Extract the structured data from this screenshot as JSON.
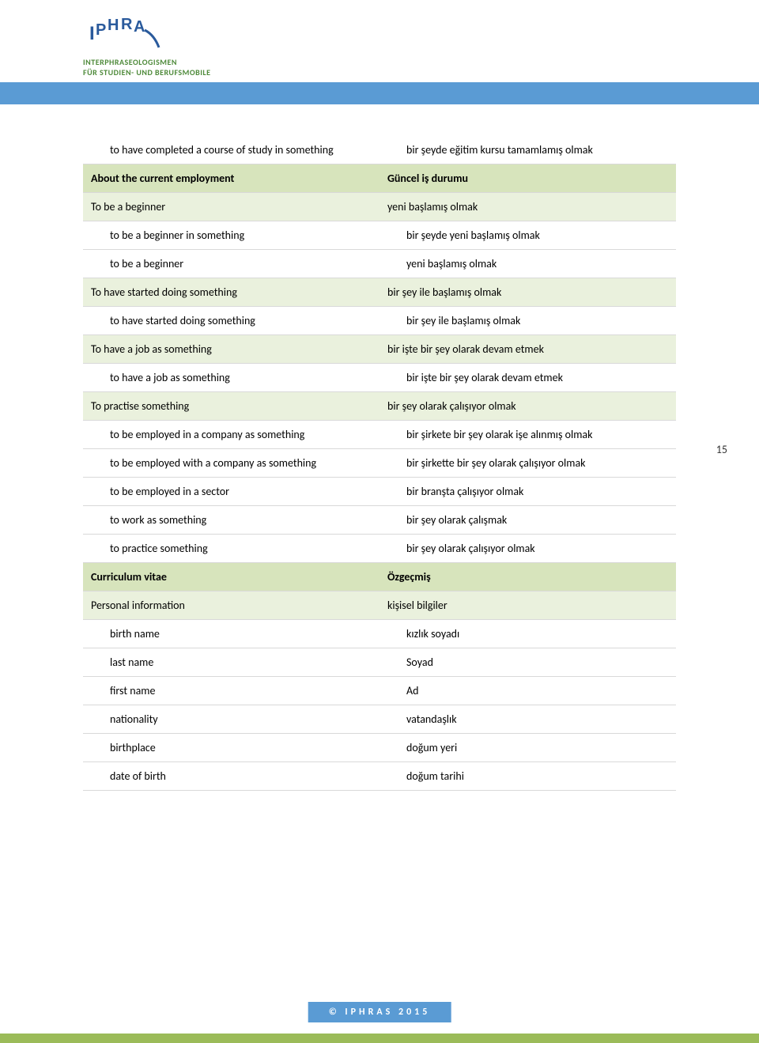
{
  "header": {
    "logo_line1": "INTERPHRASEOLOGISMEN",
    "logo_line2": "FÜR STUDIEN- UND BERUFSMOBILE",
    "colors": {
      "blue_bar": "#5a9bd4",
      "green_strip": "#9bbb59",
      "logo_green": "#4e8a3a",
      "hdr_bg": "#d7e4bc",
      "sub_bg": "#eaf1dd",
      "border": "#d9d9d9"
    }
  },
  "page_number": "15",
  "footer": "© IPHRAS 2015",
  "rows": [
    {
      "type": "plain",
      "l": "to have completed a course of study in something",
      "r": "bir şeyde eğitim kursu tamamlamış olmak",
      "li": 1,
      "ri": 1
    },
    {
      "type": "hdr",
      "l": "About the current employment",
      "r": "Güncel iş durumu",
      "li": 0,
      "ri": 0
    },
    {
      "type": "sub",
      "l": "To be a beginner",
      "r": "yeni başlamış olmak",
      "li": 0,
      "ri": 0
    },
    {
      "type": "plain",
      "l": "to be a beginner in something",
      "r": "bir şeyde yeni başlamış olmak",
      "li": 1,
      "ri": 1
    },
    {
      "type": "plain",
      "l": "to be a beginner",
      "r": "yeni başlamış olmak",
      "li": 1,
      "ri": 1
    },
    {
      "type": "sub",
      "l": "To have started doing something",
      "r": "bir şey ile başlamış olmak",
      "li": 0,
      "ri": 0
    },
    {
      "type": "plain",
      "l": "to have started doing something",
      "r": "bir şey ile başlamış olmak",
      "li": 1,
      "ri": 1
    },
    {
      "type": "sub",
      "l": "To have a job as something",
      "r": "bir işte bir şey olarak devam etmek",
      "li": 0,
      "ri": 0
    },
    {
      "type": "plain",
      "l": "to have a job as something",
      "r": "bir işte bir şey olarak devam etmek",
      "li": 1,
      "ri": 1
    },
    {
      "type": "sub",
      "l": "To practise something",
      "r": "bir şey olarak çalışıyor olmak",
      "li": 0,
      "ri": 0
    },
    {
      "type": "plain",
      "l": "to be employed in a company as something",
      "r": "bir şirkete bir şey olarak işe alınmış olmak",
      "li": 1,
      "ri": 1
    },
    {
      "type": "plain",
      "l": "to be employed with a company as something",
      "r": "bir şirkette bir şey olarak çalışıyor olmak",
      "li": 1,
      "ri": 1
    },
    {
      "type": "plain",
      "l": "to be employed in a sector",
      "r": "bir branşta çalışıyor olmak",
      "li": 1,
      "ri": 1
    },
    {
      "type": "plain",
      "l": "to work as something",
      "r": "bir şey olarak çalışmak",
      "li": 1,
      "ri": 1
    },
    {
      "type": "plain",
      "l": "to practice something",
      "r": "bir şey olarak çalışıyor olmak",
      "li": 1,
      "ri": 1
    },
    {
      "type": "hdr",
      "l": "Curriculum vitae",
      "r": "Özgeçmiş",
      "li": 0,
      "ri": 0
    },
    {
      "type": "sub",
      "l": "Personal information",
      "r": "kişisel bilgiler",
      "li": 0,
      "ri": 0
    },
    {
      "type": "plain",
      "l": "birth name",
      "r": "kızlık soyadı",
      "li": 1,
      "ri": 1
    },
    {
      "type": "plain",
      "l": "last name",
      "r": "Soyad",
      "li": 1,
      "ri": 1
    },
    {
      "type": "plain",
      "l": "first name",
      "r": "Ad",
      "li": 1,
      "ri": 1
    },
    {
      "type": "plain",
      "l": "nationality",
      "r": "vatandaşlık",
      "li": 1,
      "ri": 1
    },
    {
      "type": "plain",
      "l": "birthplace",
      "r": "doğum yeri",
      "li": 1,
      "ri": 1
    },
    {
      "type": "plain",
      "l": "date of birth",
      "r": "doğum tarihi",
      "li": 1,
      "ri": 1
    }
  ]
}
